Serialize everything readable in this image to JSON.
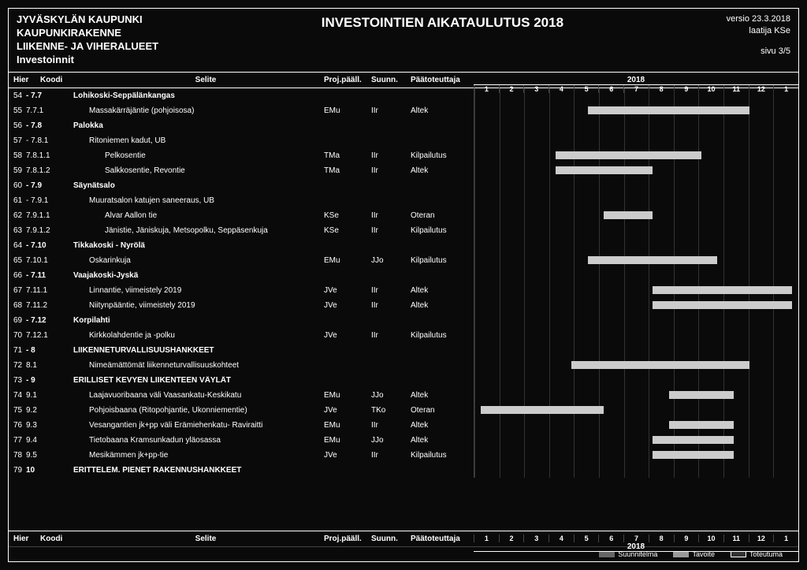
{
  "header": {
    "org1": "JYVÄSKYLÄN KAUPUNKI",
    "org2": "KAUPUNKIRAKENNE",
    "org3": "LIIKENNE- JA VIHERALUEET",
    "org4": "Investoinnit",
    "title": "INVESTOINTIEN AIKATAULUTUS 2018",
    "versio": "versio 23.3.2018",
    "laatija": "laatija KSe",
    "sivu": "sivu 3/5"
  },
  "cols": {
    "hier": "Hier",
    "koodi": "Koodi",
    "selite": "Selite",
    "proj": "Proj.pääll.",
    "suunn": "Suunn.",
    "paat": "Päätoteuttaja",
    "year": "2018"
  },
  "months": [
    "1",
    "2",
    "3",
    "4",
    "5",
    "6",
    "7",
    "8",
    "9",
    "10",
    "11",
    "12",
    "1"
  ],
  "rows": [
    {
      "n": "54",
      "k": "- 7.7",
      "s": "Lohikoski-Seppälänkangas",
      "b": true,
      "i": 0
    },
    {
      "n": "55",
      "k": "7.7.1",
      "s": "Massakärräjäntie (pohjoisosa)",
      "pr": "EMu",
      "su": "IIr",
      "pa": "Altek",
      "i": 1,
      "bar": [
        35,
        85
      ]
    },
    {
      "n": "56",
      "k": "- 7.8",
      "s": "Palokka",
      "b": true,
      "i": 0
    },
    {
      "n": "57",
      "k": "- 7.8.1",
      "s": "Ritoniemen kadut, UB",
      "i": 1
    },
    {
      "n": "58",
      "k": "7.8.1.1",
      "s": "Pelkosentie",
      "pr": "TMa",
      "su": "IIr",
      "pa": "Kilpailutus",
      "i": 2,
      "bar": [
        25,
        70
      ]
    },
    {
      "n": "59",
      "k": "7.8.1.2",
      "s": "Salkkosentie, Revontie",
      "pr": "TMa",
      "su": "IIr",
      "pa": "Altek",
      "i": 2,
      "bar": [
        25,
        55
      ]
    },
    {
      "n": "60",
      "k": "- 7.9",
      "s": "Säynätsalo",
      "b": true,
      "i": 0
    },
    {
      "n": "61",
      "k": "- 7.9.1",
      "s": "Muuratsalon katujen saneeraus, UB",
      "i": 1
    },
    {
      "n": "62",
      "k": "7.9.1.1",
      "s": "Alvar Aallon tie",
      "pr": "KSe",
      "su": "IIr",
      "pa": "Oteran",
      "i": 2,
      "bar": [
        40,
        55
      ]
    },
    {
      "n": "63",
      "k": "7.9.1.2",
      "s": "Jänistie, Jäniskuja, Metsopolku, Seppäsenkuja",
      "pr": "KSe",
      "su": "IIr",
      "pa": "Kilpailutus",
      "i": 2
    },
    {
      "n": "64",
      "k": "- 7.10",
      "s": "Tikkakoski - Nyrölä",
      "b": true,
      "i": 0
    },
    {
      "n": "65",
      "k": "7.10.1",
      "s": "Oskarinkuja",
      "pr": "EMu",
      "su": "JJo",
      "pa": "Kilpailutus",
      "i": 1,
      "bar": [
        35,
        75
      ]
    },
    {
      "n": "66",
      "k": "- 7.11",
      "s": "Vaajakoski-Jyskä",
      "b": true,
      "i": 0
    },
    {
      "n": "67",
      "k": "7.11.1",
      "s": "Linnantie, viimeistely 2019",
      "pr": "JVe",
      "su": "IIr",
      "pa": "Altek",
      "i": 1,
      "bar": [
        55,
        98
      ]
    },
    {
      "n": "68",
      "k": "7.11.2",
      "s": "Niitynpääntie, viimeistely 2019",
      "pr": "JVe",
      "su": "IIr",
      "pa": "Altek",
      "i": 1,
      "bar": [
        55,
        98
      ]
    },
    {
      "n": "69",
      "k": "- 7.12",
      "s": "Korpilahti",
      "b": true,
      "i": 0
    },
    {
      "n": "70",
      "k": "7.12.1",
      "s": "Kirkkolahdentie ja -polku",
      "pr": "JVe",
      "su": "IIr",
      "pa": "Kilpailutus",
      "i": 1
    },
    {
      "n": "71",
      "k": "- 8",
      "s": "LIIKENNETURVALLISUUSHANKKEET",
      "b": true,
      "i": 0
    },
    {
      "n": "72",
      "k": "8.1",
      "s": "Nimeämättömät liikenneturvallisuuskohteet",
      "i": 1,
      "bar": [
        30,
        85
      ]
    },
    {
      "n": "73",
      "k": "- 9",
      "s": "ERILLISET KEVYEN LIIKENTEEN VÄYLÄT",
      "b": true,
      "i": 0
    },
    {
      "n": "74",
      "k": "9.1",
      "s": "Laajavuoribaana väli Vaasankatu-Keskikatu",
      "pr": "EMu",
      "su": "JJo",
      "pa": "Altek",
      "i": 1,
      "bar": [
        60,
        80
      ]
    },
    {
      "n": "75",
      "k": "9.2",
      "s": "Pohjoisbaana (Ritopohjantie, Ukonniementie)",
      "pr": "JVe",
      "su": "TKo",
      "pa": "Oteran",
      "i": 1,
      "bar": [
        2,
        40
      ]
    },
    {
      "n": "76",
      "k": "9.3",
      "s": "Vesangantien jk+pp väli Erämiehenkatu- Raviraitti",
      "pr": "EMu",
      "su": "IIr",
      "pa": "Altek",
      "i": 1,
      "bar": [
        60,
        80
      ]
    },
    {
      "n": "77",
      "k": "9.4",
      "s": "Tietobaana Kramsunkadun yläosassa",
      "pr": "EMu",
      "su": "JJo",
      "pa": "Altek",
      "i": 1,
      "bar": [
        55,
        80
      ]
    },
    {
      "n": "78",
      "k": "9.5",
      "s": "Mesikämmen jk+pp-tie",
      "pr": "JVe",
      "su": "IIr",
      "pa": "Kilpailutus",
      "i": 1,
      "bar": [
        55,
        80
      ]
    },
    {
      "n": "79",
      "k": "10",
      "s": "ERITTELEM. PIENET RAKENNUSHANKKEET",
      "b": true,
      "i": 0
    }
  ],
  "legend": {
    "l1": "Suunnitelma",
    "l2": "Tavoite",
    "l3": "Toteutuma"
  }
}
